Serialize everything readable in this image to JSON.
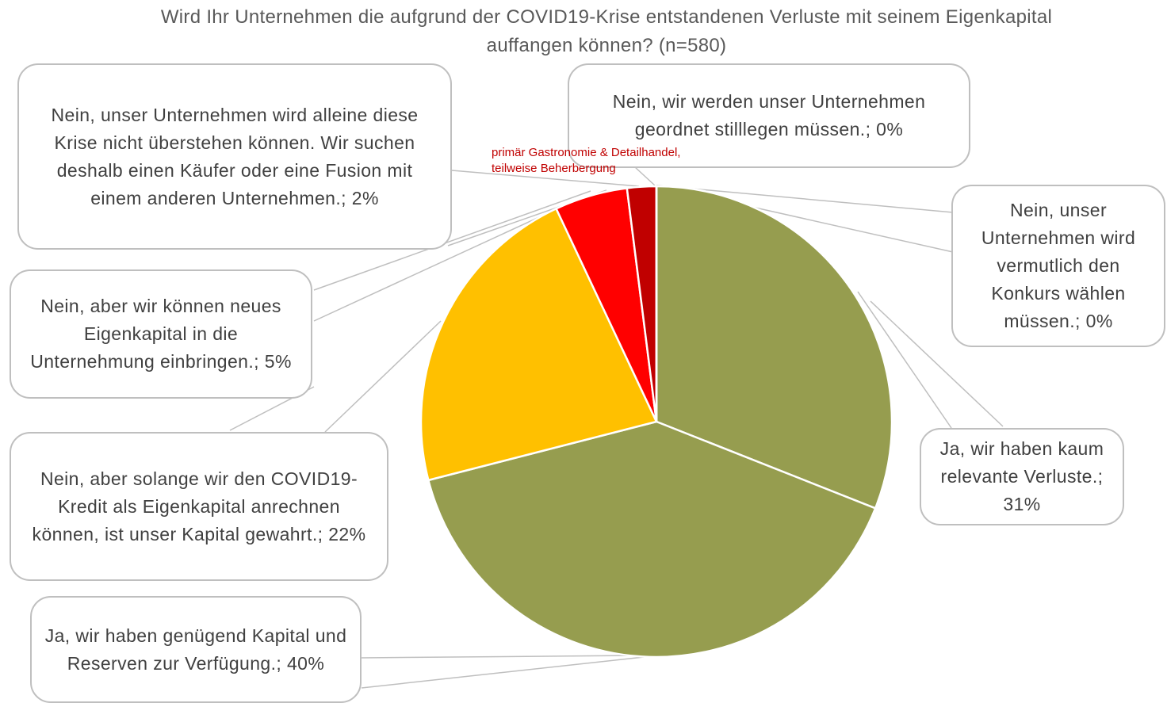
{
  "chart_data": {
    "type": "pie",
    "title": "Wird Ihr Unternehmen die aufgrund der COVID19-Krise entstandenen Verluste mit seinem Eigenkapital auffangen können? (n=580)",
    "categories": [
      "Ja, wir haben kaum relevante Verluste.;",
      "Ja, wir haben genügend Kapital und Reserven zur Verfügung.;",
      "Nein, aber solange wir den COVID19-Kredit als Eigenkapital anrechnen können, ist unser Kapital gewahrt.;",
      "Nein, aber wir können neues Eigenkapital in die Unternehmung einbringen.;",
      "Nein, unser Unternehmen wird alleine diese Krise nicht überstehen können. Wir suchen deshalb einen Käufer oder eine Fusion mit einem anderen Unternehmen.;",
      "Nein, wir werden unser Unternehmen geordnet stilllegen müssen.;",
      "Nein, unser Unternehmen wird vermutlich den Konkurs wählen müssen.;"
    ],
    "values": [
      31,
      40,
      22,
      5,
      2,
      0,
      0
    ],
    "value_labels": [
      "31%",
      "40%",
      "22%",
      "5%",
      "2%",
      "0%",
      "0%"
    ],
    "colors": [
      "#969d4f",
      "#969d4f",
      "#ffc000",
      "#ff0000",
      "#c00000",
      "#800000",
      "#c00000"
    ],
    "annotation": "primär Gastronomie & Detailhandel, teilweise Beherbergung"
  }
}
